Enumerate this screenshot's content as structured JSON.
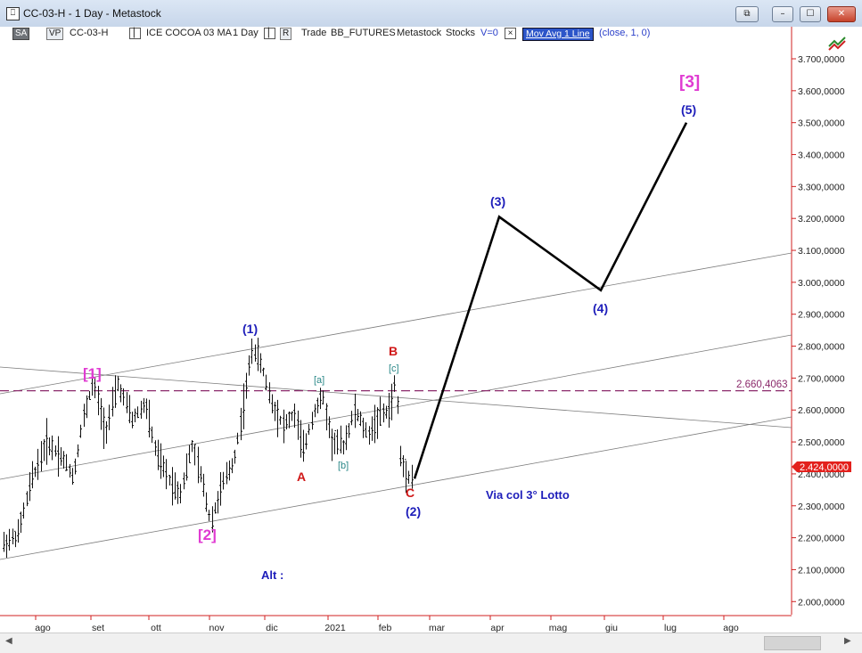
{
  "window": {
    "title": "CC-03-H - 1 Day - Metastock",
    "icon_glyph": "⎕",
    "buttons": {
      "restore": "⧉",
      "minimize": "–",
      "maximize": "☐",
      "close": "✕"
    }
  },
  "toolbar": {
    "sa": "SA",
    "vp": "VP",
    "symbol": "CC-03-H",
    "instrument": "ICE COCOA 03 MA",
    "period": "1 Day",
    "r": "R",
    "trade": "Trade",
    "source": "BB_FUTURES",
    "app": "Metastock",
    "stocks": "Stocks",
    "v": "V=0",
    "x": "×",
    "ma_label": "Mov Avg 1 Line",
    "ma_params": "(close,  1,  0)"
  },
  "colors": {
    "price_axis": "#d02020",
    "price_label_text": "#8b2a6b",
    "last_price_bg": "#e3201c",
    "wave_blue": "#1d1dba",
    "wave_magenta": "#e03bd2",
    "wave_red": "#d01818",
    "wave_teal": "#2a8888",
    "dashed_level": "#8b2a6b"
  },
  "price_axis": {
    "ticks": [
      "3.700,0000",
      "3.600,0000",
      "3.500,0000",
      "3.400,0000",
      "3.300,0000",
      "3.200,0000",
      "3.100,0000",
      "3.000,0000",
      "2.900,0000",
      "2.800,0000",
      "2.700,0000",
      "2.600,0000",
      "2.500,0000",
      "2.400,0000",
      "2.300,0000",
      "2.200,0000",
      "2.100,0000",
      "2.000,0000"
    ],
    "tick_values": [
      3700,
      3600,
      3500,
      3400,
      3300,
      3200,
      3100,
      3000,
      2900,
      2800,
      2700,
      2600,
      2500,
      2400,
      2300,
      2200,
      2100,
      2000
    ],
    "last_price": "2.424,0000",
    "last_price_value": 2424,
    "dashed_level_label": "2.660,4063",
    "dashed_level_value": 2660.4063
  },
  "time_axis": {
    "labels": [
      "ago",
      "set",
      "ott",
      "nov",
      "dic",
      "2021",
      "feb",
      "mar",
      "apr",
      "mag",
      "giu",
      "lug",
      "ago"
    ]
  },
  "annotations": {
    "w1_sq": "[1]",
    "w2_sq": "[2]",
    "w3_sq": "[3]",
    "w1": "(1)",
    "w2": "(2)",
    "w3": "(3)",
    "w4": "(4)",
    "w5": "(5)",
    "a": "A",
    "b": "B",
    "c": "C",
    "sa": "[a]",
    "sb": "[b]",
    "sc": "[c]",
    "note": "Via col 3° Lotto",
    "alt": "Alt :"
  },
  "projection": [
    {
      "label": "(2)",
      "price": 2385
    },
    {
      "label": "(3)",
      "price": 3205
    },
    {
      "label": "(4)",
      "price": 2975
    },
    {
      "label": "(5)",
      "price": 3500
    }
  ]
}
